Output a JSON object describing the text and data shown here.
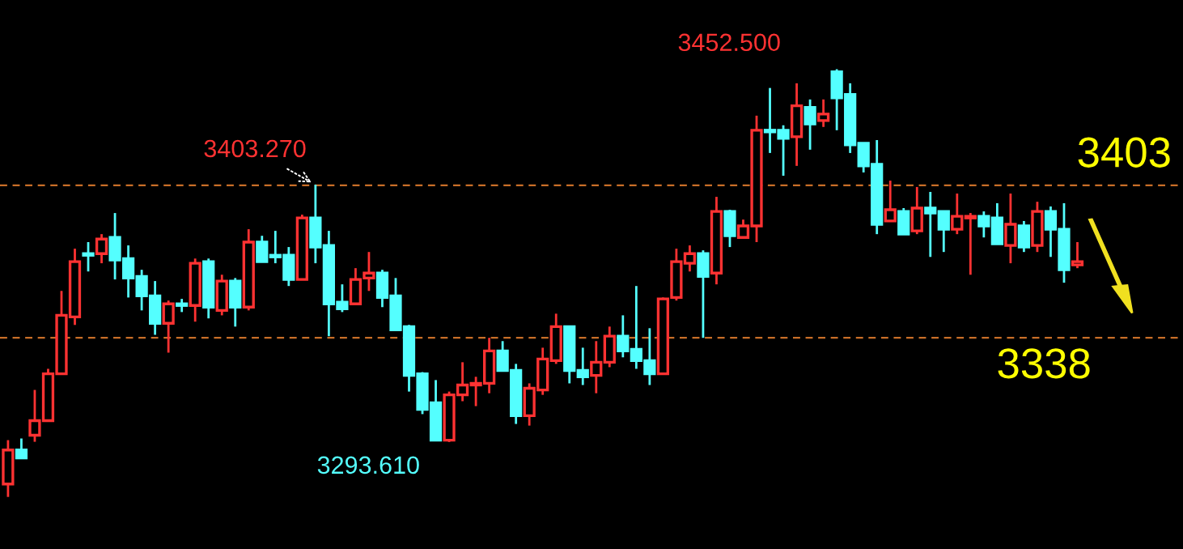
{
  "chart_data": {
    "type": "candlestick",
    "categories": [
      null,
      null,
      null,
      null,
      null,
      null,
      null,
      null,
      null,
      null,
      null,
      null,
      null,
      null,
      null,
      null,
      null,
      null,
      null,
      null,
      null,
      null,
      null,
      null,
      null,
      null,
      null,
      null,
      null,
      null,
      null,
      null,
      null,
      null,
      null,
      null,
      null,
      null,
      null,
      null,
      null,
      null,
      null,
      null,
      null,
      null,
      null,
      null,
      null,
      null,
      null,
      null,
      null,
      null,
      null,
      null,
      null,
      null,
      null,
      null,
      null,
      null,
      null,
      null,
      null,
      null,
      null,
      null,
      null,
      null,
      null,
      null,
      null,
      null,
      null,
      null,
      null,
      null,
      null,
      null,
      null
    ],
    "ohlc": [
      [
        3275.7,
        3294.4,
        3270.2,
        3290.2
      ],
      [
        3290.2,
        3295.1,
        3286.8,
        3286.8
      ],
      [
        3296.5,
        3315.8,
        3293.7,
        3302.7
      ],
      [
        3302.7,
        3324.8,
        3302.7,
        3322.7
      ],
      [
        3322.7,
        3358.0,
        3322.7,
        3347.6
      ],
      [
        3346.9,
        3376.0,
        3343.5,
        3370.5
      ],
      [
        3373.9,
        3378.8,
        3366.3,
        3373.2
      ],
      [
        3373.9,
        3382.2,
        3369.8,
        3380.1
      ],
      [
        3380.8,
        3391.2,
        3362.9,
        3371.2
      ],
      [
        3371.8,
        3377.4,
        3355.2,
        3363.5
      ],
      [
        3364.2,
        3367.0,
        3349.7,
        3355.9
      ],
      [
        3355.9,
        3362.2,
        3339.3,
        3344.2
      ],
      [
        3344.2,
        3353.9,
        3331.7,
        3352.5
      ],
      [
        3352.5,
        3354.6,
        3349.0,
        3351.8
      ],
      [
        3351.8,
        3371.8,
        3344.9,
        3369.8
      ],
      [
        3370.5,
        3371.8,
        3346.3,
        3351.1
      ],
      [
        3349.7,
        3364.9,
        3347.6,
        3362.2
      ],
      [
        3362.2,
        3363.5,
        3342.8,
        3351.1
      ],
      [
        3351.1,
        3384.3,
        3349.7,
        3378.8
      ],
      [
        3378.8,
        3381.5,
        3370.5,
        3370.5
      ],
      [
        3373.2,
        3383.6,
        3369.8,
        3372.5
      ],
      [
        3373.2,
        3376.7,
        3360.1,
        3362.9
      ],
      [
        3362.9,
        3390.5,
        3362.9,
        3389.1
      ],
      [
        3389.1,
        3403.27,
        3369.8,
        3376.7
      ],
      [
        3377.4,
        3383.6,
        3338.7,
        3352.5
      ],
      [
        3353.2,
        3360.8,
        3349.0,
        3350.4
      ],
      [
        3352.5,
        3367.7,
        3352.5,
        3362.9
      ],
      [
        3363.5,
        3374.6,
        3358.0,
        3365.6
      ],
      [
        3365.6,
        3367.0,
        3351.1,
        3355.2
      ],
      [
        3355.9,
        3363.5,
        3341.4,
        3341.4
      ],
      [
        3342.8,
        3343.5,
        3315.1,
        3322.0
      ],
      [
        3322.7,
        3323.4,
        3305.5,
        3307.5
      ],
      [
        3310.3,
        3320.0,
        3294.4,
        3294.4
      ],
      [
        3294.4,
        3315.1,
        3293.61,
        3313.7
      ],
      [
        3313.7,
        3327.6,
        3311.0,
        3317.9
      ],
      [
        3317.9,
        3321.4,
        3308.9,
        3318.6
      ],
      [
        3318.6,
        3338.0,
        3314.4,
        3332.4
      ],
      [
        3332.4,
        3336.6,
        3324.1,
        3324.1
      ],
      [
        3324.1,
        3326.9,
        3301.3,
        3304.8
      ],
      [
        3304.8,
        3318.6,
        3300.6,
        3316.5
      ],
      [
        3315.8,
        3333.8,
        3313.7,
        3329.0
      ],
      [
        3328.3,
        3348.3,
        3326.9,
        3342.8
      ],
      [
        3342.8,
        3342.8,
        3318.6,
        3324.1
      ],
      [
        3324.1,
        3333.8,
        3317.9,
        3321.4
      ],
      [
        3322.0,
        3336.6,
        3314.4,
        3327.6
      ],
      [
        3327.6,
        3342.8,
        3325.5,
        3338.7
      ],
      [
        3338.7,
        3347.6,
        3329.7,
        3332.4
      ],
      [
        3333.1,
        3360.1,
        3324.8,
        3328.3
      ],
      [
        3328.3,
        3342.1,
        3317.9,
        3322.7
      ],
      [
        3322.7,
        3355.2,
        3322.7,
        3354.6
      ],
      [
        3355.2,
        3376.0,
        3353.9,
        3370.5
      ],
      [
        3369.8,
        3377.4,
        3366.3,
        3373.9
      ],
      [
        3373.9,
        3375.3,
        3338.0,
        3364.2
      ],
      [
        3365.6,
        3398.1,
        3360.8,
        3391.9
      ],
      [
        3391.9,
        3392.6,
        3376.7,
        3381.5
      ],
      [
        3380.8,
        3388.4,
        3380.8,
        3385.7
      ],
      [
        3385.7,
        3432.7,
        3378.8,
        3426.5
      ],
      [
        3426.5,
        3444.5,
        3416.8,
        3425.8
      ],
      [
        3426.5,
        3428.6,
        3407.1,
        3423.0
      ],
      [
        3423.7,
        3446.5,
        3411.3,
        3436.9
      ],
      [
        3436.2,
        3439.6,
        3418.2,
        3429.2
      ],
      [
        3430.6,
        3439.6,
        3427.9,
        3433.4
      ],
      [
        3451.4,
        3452.5,
        3426.5,
        3440.3
      ],
      [
        3441.7,
        3446.5,
        3416.8,
        3420.3
      ],
      [
        3420.9,
        3420.9,
        3408.5,
        3411.3
      ],
      [
        3412.0,
        3422.3,
        3382.2,
        3386.4
      ],
      [
        3387.8,
        3405.0,
        3387.8,
        3392.6
      ],
      [
        3391.9,
        3393.3,
        3382.2,
        3382.2
      ],
      [
        3383.6,
        3402.3,
        3382.2,
        3393.3
      ],
      [
        3393.3,
        3400.2,
        3372.5,
        3391.2
      ],
      [
        3391.9,
        3391.9,
        3374.6,
        3384.3
      ],
      [
        3384.3,
        3399.5,
        3382.2,
        3389.8
      ],
      [
        3389.1,
        3391.2,
        3364.9,
        3389.8
      ],
      [
        3389.8,
        3391.9,
        3380.8,
        3385.7
      ],
      [
        3389.1,
        3395.4,
        3378.1,
        3378.1
      ],
      [
        3377.4,
        3399.5,
        3369.8,
        3386.4
      ],
      [
        3385.7,
        3387.8,
        3374.6,
        3376.7
      ],
      [
        3377.4,
        3396.0,
        3374.6,
        3391.9
      ],
      [
        3391.9,
        3394.0,
        3372.5,
        3384.3
      ],
      [
        3384.3,
        3395.4,
        3361.5,
        3367.0
      ],
      [
        3369.1,
        3378.8,
        3367.7,
        3370.5
      ]
    ],
    "colors": [
      "#ff3232",
      "#54ffff",
      "#ff3232",
      "#ff3232",
      "#ff3232",
      "#ff3232",
      "#54ffff",
      "#ff3232",
      "#54ffff",
      "#54ffff",
      "#54ffff",
      "#54ffff",
      "#ff3232",
      "#54ffff",
      "#ff3232",
      "#54ffff",
      "#ff3232",
      "#54ffff",
      "#ff3232",
      "#54ffff",
      "#54ffff",
      "#54ffff",
      "#ff3232",
      "#54ffff",
      "#54ffff",
      "#54ffff",
      "#ff3232",
      "#ff3232",
      "#54ffff",
      "#54ffff",
      "#54ffff",
      "#54ffff",
      "#54ffff",
      "#ff3232",
      "#ff3232",
      "#ff3232",
      "#ff3232",
      "#54ffff",
      "#54ffff",
      "#ff3232",
      "#ff3232",
      "#ff3232",
      "#54ffff",
      "#54ffff",
      "#ff3232",
      "#ff3232",
      "#54ffff",
      "#54ffff",
      "#54ffff",
      "#ff3232",
      "#ff3232",
      "#ff3232",
      "#54ffff",
      "#ff3232",
      "#54ffff",
      "#ff3232",
      "#ff3232",
      "#54ffff",
      "#54ffff",
      "#ff3232",
      "#54ffff",
      "#ff3232",
      "#54ffff",
      "#54ffff",
      "#54ffff",
      "#54ffff",
      "#ff3232",
      "#54ffff",
      "#ff3232",
      "#54ffff",
      "#54ffff",
      "#ff3232",
      "#ff3232",
      "#54ffff",
      "#54ffff",
      "#ff3232",
      "#54ffff",
      "#ff3232",
      "#54ffff",
      "#54ffff",
      "#ff3232"
    ],
    "ylim": [
      3248,
      3482
    ],
    "tick_labels": false,
    "grid": false,
    "legend": false,
    "ref_lines": [
      {
        "axis": "y",
        "value": 3403,
        "label": "3403",
        "color": "#c86e28",
        "line_style": "dashed"
      },
      {
        "axis": "y",
        "value": 3338,
        "label": "3338",
        "color": "#c86e28",
        "line_style": "dashed"
      }
    ],
    "annotations": [
      "3452.500",
      {
        "text": "3403.270",
        "y": 3403.27
      },
      "3293.610"
    ]
  }
}
